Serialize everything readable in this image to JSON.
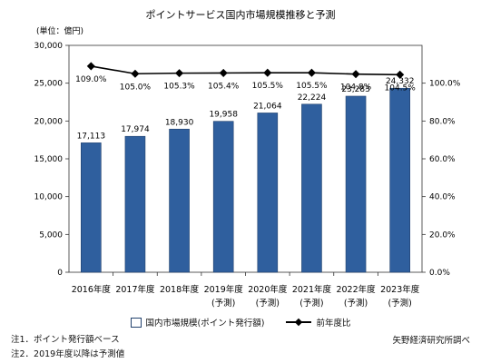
{
  "chart_data": {
    "type": "bar",
    "title": "ポイントサービス国内市場規模推移と予測",
    "unit_label": "(単位：億円)",
    "categories": [
      {
        "year": "2016年度",
        "note": ""
      },
      {
        "year": "2017年度",
        "note": ""
      },
      {
        "year": "2018年度",
        "note": ""
      },
      {
        "year": "2019年度",
        "note": "(予測)"
      },
      {
        "year": "2020年度",
        "note": "(予測)"
      },
      {
        "year": "2021年度",
        "note": "(予測)"
      },
      {
        "year": "2022年度",
        "note": "(予測)"
      },
      {
        "year": "2023年度",
        "note": "(予測)"
      }
    ],
    "series": [
      {
        "name": "国内市場規模(ポイント発行額)",
        "type": "bar",
        "axis": "left",
        "color": "#2f5f9e",
        "values": [
          17113,
          17974,
          18930,
          19958,
          21064,
          22224,
          23283,
          24332
        ],
        "labels": [
          "17,113",
          "17,974",
          "18,930",
          "19,958",
          "21,064",
          "22,224",
          "23,283",
          "24,332"
        ]
      },
      {
        "name": "前年度比",
        "type": "line",
        "axis": "right",
        "color": "#000000",
        "values": [
          109.0,
          105.0,
          105.3,
          105.4,
          105.5,
          105.5,
          104.8,
          104.5
        ],
        "labels": [
          "109.0%",
          "105.0%",
          "105.3%",
          "105.4%",
          "105.5%",
          "105.5%",
          "104.8%",
          "104.5%"
        ]
      }
    ],
    "y_left": {
      "min": 0,
      "max": 30000,
      "ticks": [
        0,
        5000,
        10000,
        15000,
        20000,
        25000,
        30000
      ],
      "tick_labels": [
        "0",
        "5,000",
        "10,000",
        "15,000",
        "20,000",
        "25,000",
        "30,000"
      ]
    },
    "y_right": {
      "min": 0,
      "max": 120,
      "ticks": [
        0,
        20,
        40,
        60,
        80,
        100
      ],
      "tick_labels": [
        "0.0%",
        "20.0%",
        "40.0%",
        "60.0%",
        "80.0%",
        "100.0%"
      ]
    },
    "grid": false,
    "legend_position": "bottom"
  },
  "notes": [
    "注1．ポイント発行額ベース",
    "注2．2019年度以降は予測値"
  ],
  "source": "矢野経済研究所調べ"
}
